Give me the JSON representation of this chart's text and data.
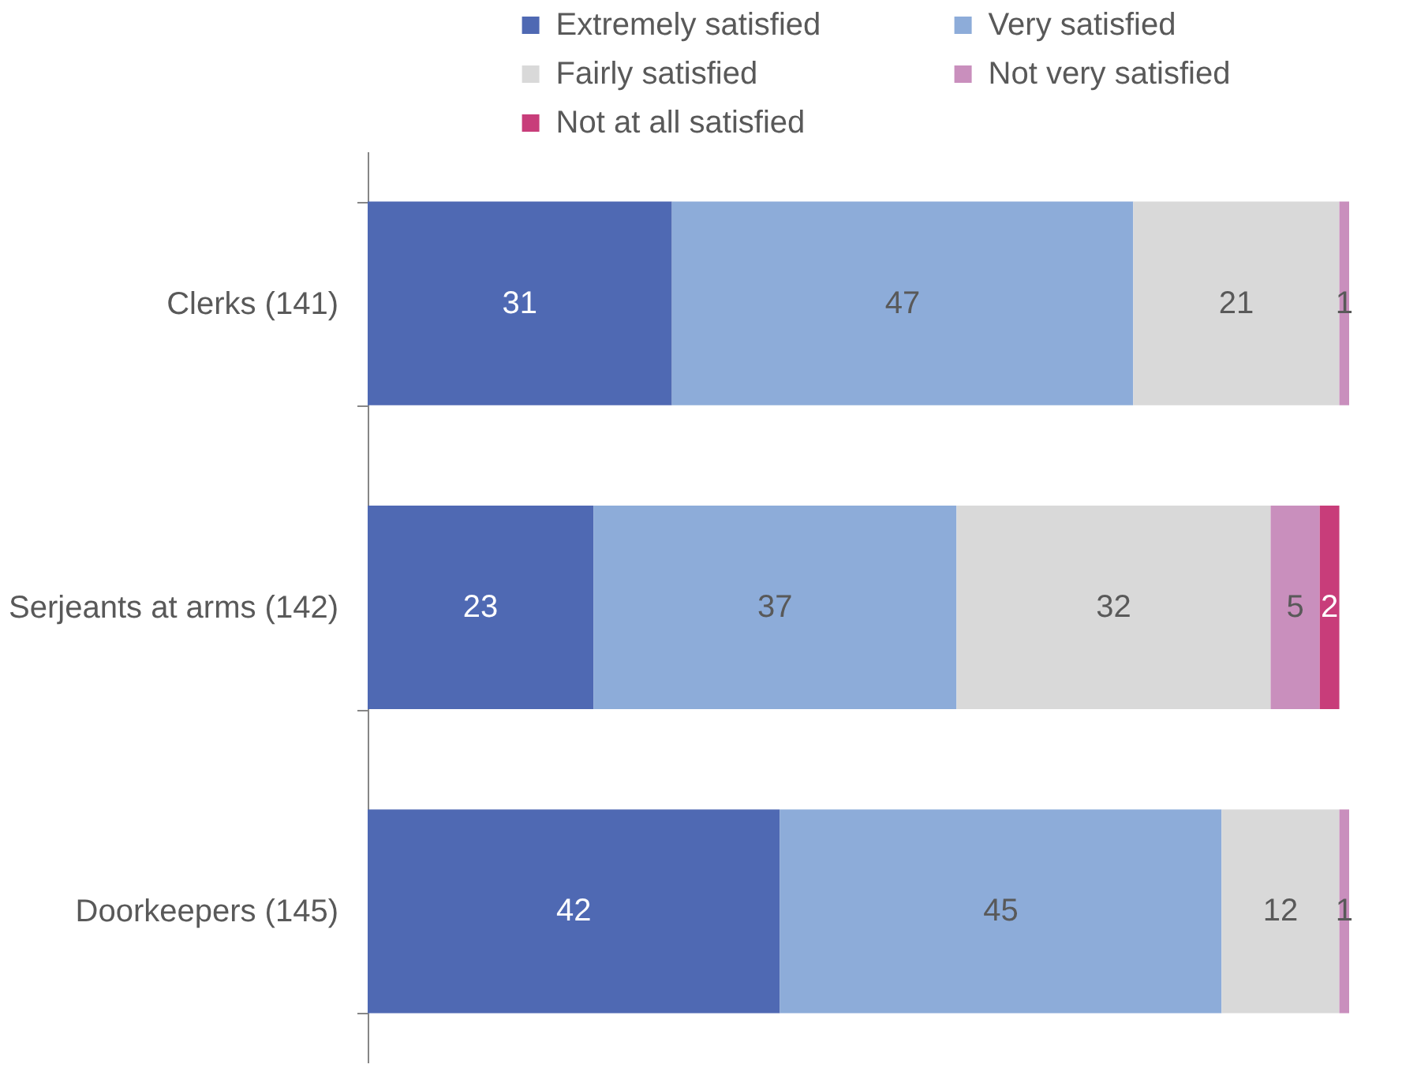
{
  "chart_data": {
    "type": "bar",
    "orientation": "horizontal",
    "stacked": true,
    "categories": [
      "Clerks (141)",
      "Serjeants at arms (142)",
      "Doorkeepers (145)"
    ],
    "series": [
      {
        "name": "Extremely satisfied",
        "color": "#4f69b3",
        "values": [
          31,
          23,
          42
        ]
      },
      {
        "name": "Very satisfied",
        "color": "#8dacd9",
        "values": [
          47,
          37,
          45
        ]
      },
      {
        "name": "Fairly satisfied",
        "color": "#d9d9d9",
        "values": [
          21,
          32,
          12
        ]
      },
      {
        "name": "Not very satisfied",
        "color": "#c98fbd",
        "values": [
          1,
          5,
          1
        ]
      },
      {
        "name": "Not at all satisfied",
        "color": "#c83d7a",
        "values": [
          null,
          2,
          null
        ]
      }
    ],
    "data_labels": true,
    "legend": "top",
    "tick_labels": "y"
  }
}
